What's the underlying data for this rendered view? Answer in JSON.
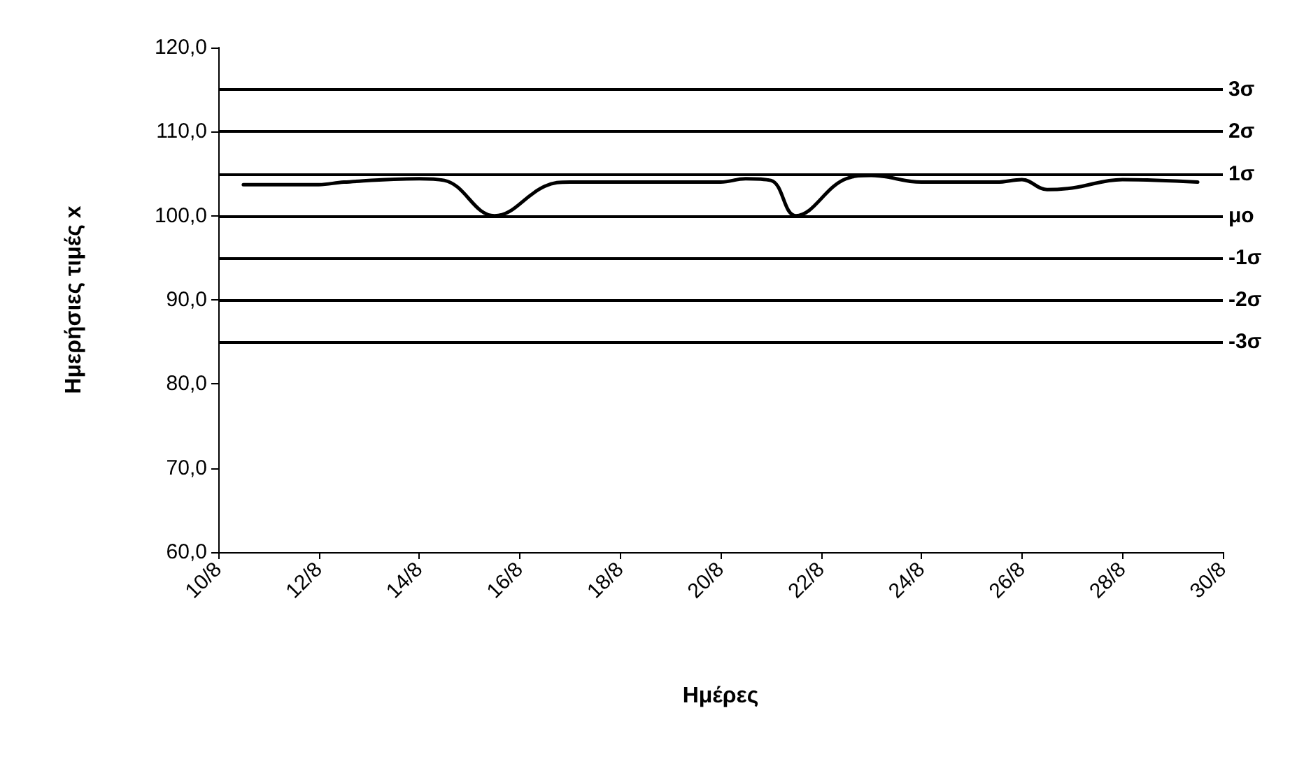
{
  "chart_data": {
    "type": "line",
    "xlabel": "Ημέρες",
    "ylabel": "Ημερήσιες τιμές x",
    "x": [
      "--08-10T12:00",
      "--08-12T00:00",
      "--08-12T12:00",
      "--08-14T00:00",
      "--08-14T12:00",
      "--08-15T12:00",
      "--08-16T12:00",
      "--08-17T00:00",
      "--08-20T00:00",
      "--08-20T12:00",
      "--08-21T00:00",
      "--08-21T12:00",
      "--08-22T12:00",
      "--08-23T00:00",
      "--08-24T00:00",
      "--08-25T12:00",
      "--08-26T00:00",
      "--08-26T12:00",
      "--08-27T00:00",
      "--08-28T00:00",
      "--08-29T12:00"
    ],
    "series": [
      {
        "color": "#000000",
        "values": [
          103.7,
          103.7,
          104.0,
          104.4,
          104.2,
          100.0,
          103.5,
          104.0,
          104.0,
          104.4,
          104.2,
          100.0,
          104.4,
          104.8,
          104.0,
          104.0,
          104.3,
          103.1,
          103.3,
          104.3,
          104.0
        ]
      }
    ],
    "xlim": [
      "--08-10",
      "--08-30"
    ],
    "xticks": [
      {
        "value": "--08-10",
        "label": "10/8"
      },
      {
        "value": "--08-12",
        "label": "12/8"
      },
      {
        "value": "--08-14",
        "label": "14/8"
      },
      {
        "value": "--08-16",
        "label": "16/8"
      },
      {
        "value": "--08-18",
        "label": "18/8"
      },
      {
        "value": "--08-20",
        "label": "20/8"
      },
      {
        "value": "--08-22",
        "label": "22/8"
      },
      {
        "value": "--08-24",
        "label": "24/8"
      },
      {
        "value": "--08-26",
        "label": "26/8"
      },
      {
        "value": "--08-28",
        "label": "28/8"
      },
      {
        "value": "--08-30",
        "label": "30/8"
      }
    ],
    "ylim": [
      60,
      120
    ],
    "yticks": [
      {
        "value": 60,
        "label": "60,0"
      },
      {
        "value": 70,
        "label": "70,0"
      },
      {
        "value": 80,
        "label": "80,0"
      },
      {
        "value": 90,
        "label": "90,0"
      },
      {
        "value": 100,
        "label": "100,0"
      },
      {
        "value": 110,
        "label": "110,0"
      },
      {
        "value": 120,
        "label": "120,0"
      }
    ],
    "ref_lines": [
      {
        "axis": "y",
        "value": 115,
        "label": "3σ",
        "color": "#000000"
      },
      {
        "axis": "y",
        "value": 110,
        "label": "2σ",
        "color": "#000000"
      },
      {
        "axis": "y",
        "value": 105,
        "label": "1σ",
        "color": "#000000"
      },
      {
        "axis": "y",
        "value": 100,
        "label": "μο",
        "color": "#000000"
      },
      {
        "axis": "y",
        "value": 95,
        "label": "-1σ",
        "color": "#000000"
      },
      {
        "axis": "y",
        "value": 90,
        "label": "-2σ",
        "color": "#000000"
      },
      {
        "axis": "y",
        "value": 85,
        "label": "-3σ",
        "color": "#000000"
      }
    ],
    "grid": false,
    "marker": "none",
    "line_style": "solid"
  }
}
